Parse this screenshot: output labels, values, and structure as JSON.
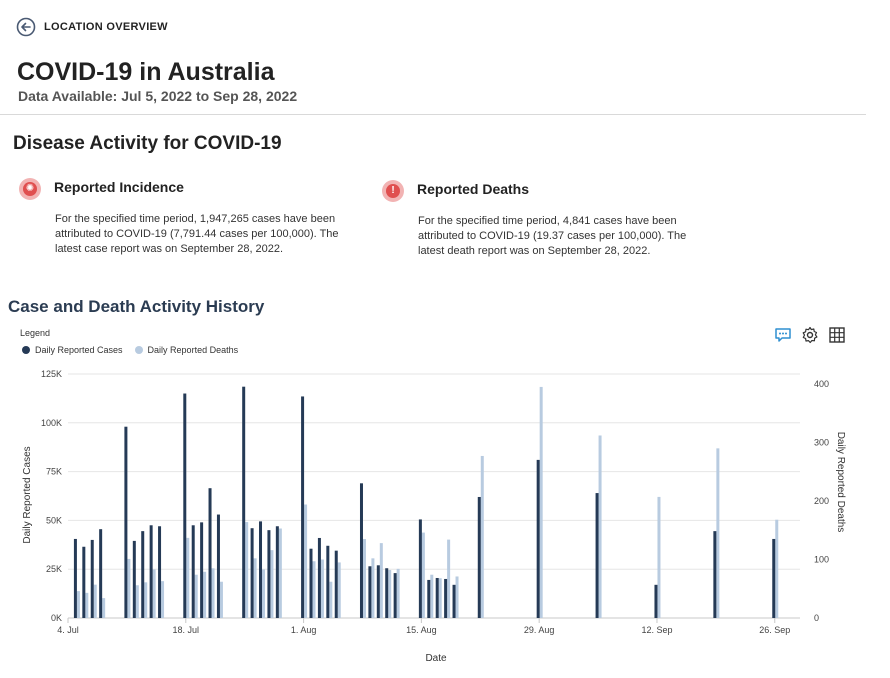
{
  "nav": {
    "back_label": "LOCATION OVERVIEW"
  },
  "page": {
    "title": "COVID-19 in Australia",
    "subtitle": "Data Available: Jul 5, 2022 to Sep 28, 2022"
  },
  "section": {
    "title": "Disease Activity for COVID-19"
  },
  "cards": [
    {
      "icon": "virus-icon",
      "title": "Reported Incidence",
      "text": "For the specified time period, 1,947,265 cases have been attributed to COVID-19 (7,791.44 cases per 100,000). The latest case report was on September 28, 2022."
    },
    {
      "icon": "alert-icon",
      "title": "Reported Deaths",
      "text": "For the specified time period, 4,841 cases have been attributed to COVID-19 (19.37 cases per 100,000). The latest death report was on September 28, 2022."
    }
  ],
  "chart_section": {
    "title": "Case and Death Activity History",
    "legend_title": "Legend",
    "tools": [
      "comment-icon",
      "gear-icon",
      "table-grid-icon"
    ]
  },
  "colors": {
    "cases": "#253a56",
    "deaths": "#b8cbe0",
    "accent": "#2f8fd1",
    "alert": "#e04f4f"
  },
  "chart_data": {
    "type": "bar",
    "xlabel": "Date",
    "ylabel_left": "Daily Reported Cases",
    "ylabel_right": "Daily Reported Deaths",
    "ylim_left": [
      0,
      125000
    ],
    "ylim_right": [
      0,
      400
    ],
    "yticks_left": [
      "0K",
      "25K",
      "50K",
      "75K",
      "100K",
      "125K"
    ],
    "yticks_right": [
      "0",
      "100",
      "200",
      "300",
      "400"
    ],
    "xticks": [
      {
        "label": "4. Jul",
        "day": 0
      },
      {
        "label": "18. Jul",
        "day": 14
      },
      {
        "label": "1. Aug",
        "day": 28
      },
      {
        "label": "15. Aug",
        "day": 42
      },
      {
        "label": "29. Aug",
        "day": 56
      },
      {
        "label": "12. Sep",
        "day": 70
      },
      {
        "label": "26. Sep",
        "day": 84
      }
    ],
    "x_range": [
      0,
      87
    ],
    "grid": "horizontal",
    "legend_position": "top-left",
    "series": [
      {
        "name": "Daily Reported Cases",
        "axis": "left",
        "points": [
          [
            1,
            40500
          ],
          [
            2,
            36500
          ],
          [
            3,
            40000
          ],
          [
            4,
            45500
          ],
          [
            7,
            98000
          ],
          [
            8,
            39500
          ],
          [
            9,
            44500
          ],
          [
            10,
            47500
          ],
          [
            11,
            47000
          ],
          [
            14,
            115000
          ],
          [
            15,
            47500
          ],
          [
            16,
            49000
          ],
          [
            17,
            66500
          ],
          [
            18,
            53000
          ],
          [
            21,
            118500
          ],
          [
            22,
            46000
          ],
          [
            23,
            49500
          ],
          [
            24,
            45000
          ],
          [
            25,
            47000
          ],
          [
            28,
            113500
          ],
          [
            29,
            35500
          ],
          [
            30,
            41000
          ],
          [
            31,
            37000
          ],
          [
            32,
            34500
          ],
          [
            35,
            69000
          ],
          [
            36,
            26500
          ],
          [
            37,
            27000
          ],
          [
            38,
            25500
          ],
          [
            39,
            23000
          ],
          [
            42,
            50500
          ],
          [
            43,
            19500
          ],
          [
            44,
            20500
          ],
          [
            45,
            20000
          ],
          [
            46,
            17000
          ],
          [
            49,
            62000
          ],
          [
            56,
            81000
          ],
          [
            63,
            64000
          ],
          [
            70,
            17000
          ],
          [
            77,
            44500
          ],
          [
            84,
            40500
          ]
        ]
      },
      {
        "name": "Daily Reported Deaths",
        "axis": "right",
        "points": [
          [
            1,
            46
          ],
          [
            2,
            43
          ],
          [
            3,
            57
          ],
          [
            4,
            34
          ],
          [
            7,
            101
          ],
          [
            8,
            56
          ],
          [
            9,
            61
          ],
          [
            10,
            83
          ],
          [
            11,
            63
          ],
          [
            14,
            137
          ],
          [
            15,
            74
          ],
          [
            16,
            79
          ],
          [
            17,
            85
          ],
          [
            18,
            62
          ],
          [
            21,
            164
          ],
          [
            22,
            102
          ],
          [
            23,
            83
          ],
          [
            24,
            116
          ],
          [
            25,
            153
          ],
          [
            28,
            194
          ],
          [
            29,
            97
          ],
          [
            30,
            100
          ],
          [
            31,
            62
          ],
          [
            32,
            95
          ],
          [
            35,
            135
          ],
          [
            36,
            102
          ],
          [
            37,
            128
          ],
          [
            38,
            82
          ],
          [
            39,
            84
          ],
          [
            42,
            146
          ],
          [
            43,
            74
          ],
          [
            44,
            68
          ],
          [
            45,
            134
          ],
          [
            46,
            71
          ],
          [
            49,
            277
          ],
          [
            56,
            395
          ],
          [
            63,
            312
          ],
          [
            70,
            207
          ],
          [
            77,
            290
          ],
          [
            84,
            168
          ]
        ]
      }
    ]
  }
}
